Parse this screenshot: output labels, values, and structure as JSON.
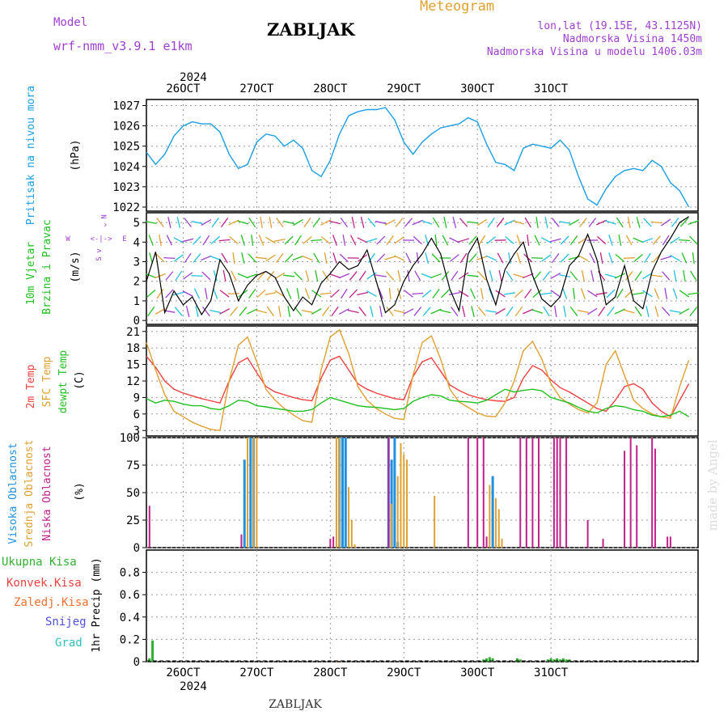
{
  "header": {
    "model_label": "Model",
    "model_name": "wrf-nmm_v3.9.1  e1km",
    "title": "ZABLJAK",
    "meteogram": "Meteogram",
    "lonlat": "lon,lat (19.15E, 43.1125N)",
    "elevation": "Nadmorska Visina 1450m",
    "elevation_model": "Nadmorska Visina u modelu 1406.03m",
    "footer_title": "ZABLJAK",
    "watermark": "made by Angel"
  },
  "colors": {
    "purple": "#a040d0",
    "pressure": "#1a9ee6",
    "temp2m": "#f04040",
    "sfc": "#e0a030",
    "dewpt": "#20c020",
    "high_cloud": "#2090e0",
    "mid_cloud": "#e0a030",
    "low_cloud": "#c0208a",
    "precip_total": "#30b030",
    "precip_conv": "#f04040",
    "precip_frz": "#f07030",
    "snow": "#5050e0",
    "grad": "#30c0c0"
  },
  "x_axis": {
    "year": "2024",
    "dates": [
      "26OCT",
      "27OCT",
      "28OCT",
      "29OCT",
      "30OCT",
      "31OCT"
    ]
  },
  "panel_labels": {
    "pressure": [
      "Pritisak na nivou mora",
      "(hPa)"
    ],
    "wind": [
      "10m Vjetar",
      "Brzina i Pravac",
      "(m/s)"
    ],
    "compass": [
      "N",
      "^",
      "W",
      "<-|->",
      "E",
      "v",
      "S"
    ],
    "temp": [
      "2m Temp",
      "SFC Temp",
      "dewpt Temp",
      "(C)"
    ],
    "cloud": [
      "Visoka Oblacnost",
      "Srednja Oblacnost",
      "Niska Oblacnost",
      "(%)"
    ],
    "precip_axis": "1hr Precip (mm)",
    "precip_legend": [
      "Ukupna Kisa",
      "Konvek.Kisa",
      "Zaledj.Kisa",
      "Snijeg",
      "Grad"
    ]
  },
  "chart_data": [
    {
      "type": "line",
      "title": "",
      "ylabel": "(hPa)",
      "ylim": [
        1021.8,
        1027.3
      ],
      "yticks": [
        1022,
        1023,
        1024,
        1025,
        1026,
        1027
      ],
      "series": [
        {
          "name": "Pritisak na nivou mora",
          "x_hours": [
            0,
            3,
            6,
            9,
            12,
            15,
            18,
            21,
            24,
            27,
            30,
            33,
            36,
            39,
            42,
            45,
            48,
            51,
            54,
            57,
            60,
            63,
            66,
            69,
            72,
            75,
            78,
            81,
            84,
            87,
            90,
            93,
            96,
            99,
            102,
            105,
            108,
            111,
            114,
            117,
            120,
            123,
            126,
            129,
            132,
            135,
            138,
            141,
            144,
            147,
            150,
            153,
            156,
            159,
            162,
            165,
            168,
            171,
            174,
            177
          ],
          "values": [
            1024.7,
            1024.1,
            1024.6,
            1025.5,
            1026.0,
            1026.2,
            1026.1,
            1026.1,
            1025.7,
            1024.6,
            1023.9,
            1024.1,
            1025.2,
            1025.6,
            1025.5,
            1025.0,
            1025.3,
            1024.9,
            1023.8,
            1023.5,
            1024.3,
            1025.6,
            1026.5,
            1026.7,
            1026.8,
            1026.8,
            1026.9,
            1026.3,
            1025.2,
            1024.6,
            1025.2,
            1025.6,
            1025.9,
            1026.0,
            1026.1,
            1026.4,
            1026.2,
            1025.1,
            1024.2,
            1024.1,
            1023.8,
            1024.9,
            1025.1,
            1025.0,
            1024.9,
            1025.3,
            1024.8,
            1023.5,
            1022.4,
            1022.1,
            1022.9,
            1023.5,
            1023.8,
            1023.9,
            1023.8,
            1024.3,
            1024.0,
            1023.2,
            1022.8,
            1022.0
          ]
        }
      ]
    },
    {
      "type": "line",
      "title": "",
      "ylabel": "(m/s)",
      "ylim": [
        -0.2,
        5.5
      ],
      "yticks": [
        0,
        1,
        2,
        3,
        4,
        5
      ],
      "note": "10m wind speed with direction barbs",
      "series": [
        {
          "name": "10m Vjetar",
          "x_hours": [
            0,
            3,
            6,
            9,
            12,
            15,
            18,
            21,
            24,
            27,
            30,
            33,
            36,
            39,
            42,
            45,
            48,
            51,
            54,
            57,
            60,
            63,
            66,
            69,
            72,
            75,
            78,
            81,
            84,
            87,
            90,
            93,
            96,
            99,
            102,
            105,
            108,
            111,
            114,
            117,
            120,
            123,
            126,
            129,
            132,
            135,
            138,
            141,
            144,
            147,
            150,
            153,
            156,
            159,
            162,
            165,
            168,
            171,
            174,
            177
          ],
          "values": [
            2.0,
            3.5,
            0.4,
            1.5,
            0.8,
            1.2,
            0.3,
            1.0,
            3.1,
            2.4,
            1.0,
            1.8,
            2.3,
            2.5,
            2.2,
            1.2,
            0.5,
            1.2,
            0.8,
            1.9,
            2.4,
            3.0,
            2.6,
            2.8,
            3.6,
            2.0,
            0.4,
            0.8,
            2.0,
            2.8,
            3.4,
            4.2,
            3.4,
            1.6,
            0.5,
            3.4,
            4.2,
            2.1,
            0.8,
            2.6,
            3.4,
            4.0,
            2.3,
            1.1,
            0.7,
            1.2,
            2.8,
            3.3,
            4.4,
            3.1,
            0.8,
            1.2,
            2.8,
            1.0,
            0.6,
            2.5,
            3.5,
            4.2,
            5.0,
            5.3
          ]
        }
      ]
    },
    {
      "type": "line",
      "title": "",
      "ylabel": "(C)",
      "ylim": [
        2,
        22
      ],
      "yticks": [
        3,
        6,
        9,
        12,
        15,
        18,
        21
      ],
      "series": [
        {
          "name": "2m Temp",
          "x_hours": [
            0,
            3,
            6,
            9,
            12,
            15,
            18,
            21,
            24,
            27,
            30,
            33,
            36,
            39,
            42,
            45,
            48,
            51,
            54,
            57,
            60,
            63,
            66,
            69,
            72,
            75,
            78,
            81,
            84,
            87,
            90,
            93,
            96,
            99,
            102,
            105,
            108,
            111,
            114,
            117,
            120,
            123,
            126,
            129,
            132,
            135,
            138,
            141,
            144,
            147,
            150,
            153,
            156,
            159,
            162,
            165,
            168,
            171,
            174,
            177
          ],
          "values": [
            16.5,
            14.5,
            12.0,
            10.5,
            9.8,
            9.3,
            8.8,
            8.4,
            8.0,
            12.0,
            15.3,
            16.2,
            13.5,
            11.0,
            10.0,
            9.5,
            9.0,
            8.6,
            8.4,
            12.5,
            15.8,
            16.5,
            14.0,
            11.5,
            10.5,
            9.8,
            9.3,
            8.8,
            8.6,
            12.8,
            15.5,
            16.2,
            13.8,
            11.3,
            10.3,
            9.5,
            9.0,
            8.6,
            8.4,
            8.3,
            9.0,
            12.5,
            14.8,
            14.0,
            12.2,
            10.8,
            10.0,
            9.0,
            8.0,
            7.0,
            6.5,
            8.5,
            11.0,
            11.5,
            10.5,
            8.0,
            6.5,
            5.5,
            8.5,
            11.5
          ]
        },
        {
          "name": "SFC Temp",
          "x_hours": [
            0,
            3,
            6,
            9,
            12,
            15,
            18,
            21,
            24,
            27,
            30,
            33,
            36,
            39,
            42,
            45,
            48,
            51,
            54,
            57,
            60,
            63,
            66,
            69,
            72,
            75,
            78,
            81,
            84,
            87,
            90,
            93,
            96,
            99,
            102,
            105,
            108,
            111,
            114,
            117,
            120,
            123,
            126,
            129,
            132,
            135,
            138,
            141,
            144,
            147,
            150,
            153,
            156,
            159,
            162,
            165,
            168,
            171,
            174,
            177
          ],
          "values": [
            19.0,
            14.0,
            9.5,
            6.5,
            5.5,
            4.5,
            3.8,
            3.2,
            3.0,
            12.0,
            18.5,
            20.0,
            15.5,
            10.5,
            8.5,
            7.0,
            5.8,
            4.8,
            4.5,
            14.0,
            20.0,
            21.3,
            17.0,
            11.0,
            8.5,
            7.0,
            6.0,
            5.2,
            5.0,
            13.0,
            19.0,
            20.2,
            16.0,
            10.5,
            8.2,
            7.2,
            6.2,
            5.6,
            5.5,
            8.0,
            12.0,
            17.5,
            19.2,
            16.0,
            11.5,
            9.0,
            7.8,
            6.8,
            6.2,
            8.0,
            15.0,
            17.5,
            13.0,
            8.5,
            7.0,
            6.0,
            5.5,
            5.2,
            11.0,
            15.8
          ]
        },
        {
          "name": "dewpt Temp",
          "x_hours": [
            0,
            3,
            6,
            9,
            12,
            15,
            18,
            21,
            24,
            27,
            30,
            33,
            36,
            39,
            42,
            45,
            48,
            51,
            54,
            57,
            60,
            63,
            66,
            69,
            72,
            75,
            78,
            81,
            84,
            87,
            90,
            93,
            96,
            99,
            102,
            105,
            108,
            111,
            114,
            117,
            120,
            123,
            126,
            129,
            132,
            135,
            138,
            141,
            144,
            147,
            150,
            153,
            156,
            159,
            162,
            165,
            168,
            171,
            174,
            177
          ],
          "values": [
            8.8,
            8.0,
            8.5,
            8.3,
            7.8,
            7.5,
            7.5,
            7.0,
            6.8,
            7.5,
            8.5,
            8.3,
            7.5,
            7.3,
            7.0,
            6.8,
            6.5,
            6.5,
            6.8,
            8.0,
            9.0,
            8.5,
            8.0,
            7.5,
            7.3,
            7.2,
            7.0,
            6.8,
            7.0,
            8.3,
            9.0,
            9.5,
            9.3,
            8.5,
            8.3,
            8.2,
            8.0,
            8.5,
            9.5,
            10.5,
            10.0,
            10.3,
            10.5,
            10.2,
            9.0,
            8.5,
            8.0,
            7.2,
            6.5,
            6.2,
            7.0,
            7.5,
            7.3,
            6.8,
            6.5,
            5.8,
            5.5,
            5.8,
            6.5,
            5.5
          ]
        }
      ]
    },
    {
      "type": "bar",
      "title": "",
      "ylabel": "(%)",
      "ylim": [
        0,
        100
      ],
      "yticks": [
        0,
        25,
        50,
        75,
        100
      ],
      "series": [
        {
          "name": "Visoka Oblacnost",
          "x_hours": [
            32,
            34,
            35,
            63,
            64,
            65,
            79,
            80,
            81,
            82,
            113
          ],
          "values": [
            80,
            100,
            100,
            100,
            100,
            100,
            100,
            80,
            100,
            5,
            65
          ]
        },
        {
          "name": "Srednja Oblacnost",
          "x_hours": [
            33,
            35,
            36,
            62,
            63,
            66,
            67,
            68,
            80,
            82,
            83,
            84,
            85,
            94,
            112,
            114,
            115,
            116
          ],
          "values": [
            100,
            100,
            100,
            100,
            100,
            55,
            25,
            3,
            40,
            65,
            95,
            85,
            80,
            47,
            57,
            45,
            35,
            8
          ]
        },
        {
          "name": "Niska Oblacnost",
          "x_hours": [
            1,
            31,
            60,
            61,
            79,
            105,
            108,
            110,
            111,
            122,
            124,
            126,
            128,
            133,
            134,
            135,
            137,
            144,
            149,
            156,
            158,
            160,
            165,
            166,
            170,
            171
          ],
          "values": [
            38,
            12,
            8,
            10,
            100,
            100,
            100,
            100,
            10,
            100,
            100,
            100,
            100,
            100,
            100,
            100,
            100,
            25,
            8,
            88,
            100,
            93,
            100,
            90,
            10,
            10
          ]
        }
      ]
    },
    {
      "type": "bar",
      "title": "",
      "ylabel": "1hr Precip (mm)",
      "ylim": [
        0,
        1.0
      ],
      "yticks": [
        0,
        0.2,
        0.4,
        0.6,
        0.8
      ],
      "series": [
        {
          "name": "Ukupna Kisa",
          "x_hours": [
            1,
            2,
            62,
            110,
            111,
            112,
            113,
            121,
            122,
            131,
            132,
            133,
            134,
            135,
            136,
            137,
            138
          ],
          "values": [
            0.03,
            0.19,
            0.01,
            0.02,
            0.03,
            0.04,
            0.03,
            0.03,
            0.02,
            0.02,
            0.03,
            0.02,
            0.03,
            0.02,
            0.03,
            0.02,
            0.02
          ]
        },
        {
          "name": "Zaledj.Kisa",
          "x_hours": [
            62
          ],
          "values": [
            0.01
          ]
        }
      ]
    }
  ]
}
